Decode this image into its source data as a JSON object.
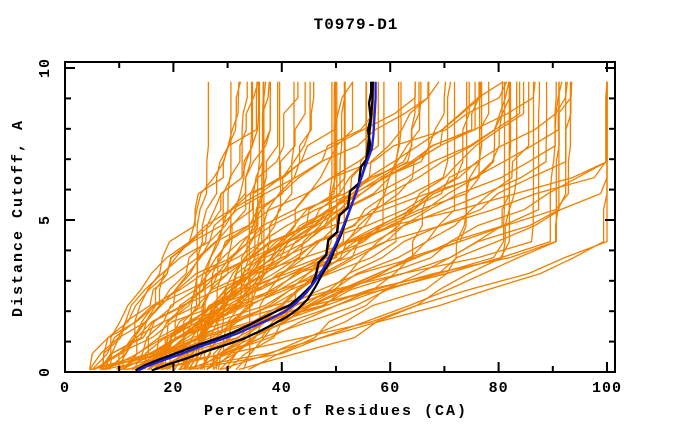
{
  "colors": {
    "background": "#ffffff",
    "axis": "#000000",
    "ensemble_orange": "#F08000",
    "highlight_black": "#000000",
    "highlight_blue": "#1F1FE0"
  },
  "chart_data": {
    "type": "line",
    "title": "T0979-D1",
    "xlabel": "Percent of Residues (CA)",
    "ylabel": "Distance Cutoff, A",
    "xlim": [
      0,
      100
    ],
    "ylim": [
      0,
      10
    ],
    "x_major_ticks": [
      0,
      20,
      40,
      60,
      80,
      100
    ],
    "x_minor_ticks": [
      10,
      30,
      50,
      70,
      90
    ],
    "y_major_ticks": [
      0,
      5,
      10
    ],
    "y_minor_ticks": [
      1,
      2,
      3,
      4,
      6,
      7,
      8,
      9
    ],
    "grid": false,
    "legend_position": "none",
    "series": [
      {
        "name": "highlighted-model-black-1",
        "color": "#000000",
        "width": 2.4,
        "points_percent_cutoff": [
          [
            13,
            0.05
          ],
          [
            14.5,
            0.2
          ],
          [
            16.5,
            0.35
          ],
          [
            19,
            0.52
          ],
          [
            22,
            0.72
          ],
          [
            25,
            0.92
          ],
          [
            28,
            1.1
          ],
          [
            31,
            1.3
          ],
          [
            34,
            1.55
          ],
          [
            36.5,
            1.78
          ],
          [
            39,
            2.0
          ],
          [
            41.5,
            2.2
          ],
          [
            43.5,
            2.5
          ],
          [
            45.5,
            2.85
          ],
          [
            46.3,
            3.2
          ],
          [
            46.8,
            3.6
          ],
          [
            48.2,
            3.85
          ],
          [
            48.6,
            4.35
          ],
          [
            50.2,
            4.6
          ],
          [
            50.6,
            5.15
          ],
          [
            52.2,
            5.4
          ],
          [
            52.6,
            5.95
          ],
          [
            54.2,
            6.2
          ],
          [
            54.6,
            6.75
          ],
          [
            55.9,
            7.05
          ],
          [
            56.3,
            7.5
          ],
          [
            55.9,
            7.95
          ],
          [
            56.4,
            8.35
          ],
          [
            56.1,
            8.85
          ],
          [
            56.5,
            9.2
          ],
          [
            56.5,
            9.55
          ]
        ]
      },
      {
        "name": "highlighted-model-black-2",
        "color": "#000000",
        "width": 2.2,
        "points_percent_cutoff": [
          [
            16,
            0.05
          ],
          [
            19,
            0.25
          ],
          [
            22.5,
            0.45
          ],
          [
            26,
            0.68
          ],
          [
            29.5,
            0.88
          ],
          [
            33,
            1.1
          ],
          [
            36,
            1.35
          ],
          [
            38.5,
            1.58
          ],
          [
            41,
            1.82
          ],
          [
            43,
            2.08
          ],
          [
            44.8,
            2.4
          ],
          [
            46.2,
            2.8
          ],
          [
            47.4,
            3.2
          ],
          [
            48.8,
            3.6
          ],
          [
            49.8,
            4.05
          ],
          [
            50.9,
            4.5
          ],
          [
            51.9,
            5.0
          ],
          [
            52.9,
            5.5
          ],
          [
            53.9,
            6.0
          ],
          [
            54.9,
            6.5
          ],
          [
            55.6,
            7.0
          ],
          [
            56.0,
            7.6
          ],
          [
            56.4,
            8.2
          ],
          [
            56.7,
            8.9
          ],
          [
            56.8,
            9.55
          ]
        ]
      },
      {
        "name": "highlighted-model-blue",
        "color": "#1F1FE0",
        "width": 2.3,
        "points_percent_cutoff": [
          [
            13.5,
            0.05
          ],
          [
            15,
            0.18
          ],
          [
            17.5,
            0.35
          ],
          [
            20,
            0.5
          ],
          [
            23,
            0.7
          ],
          [
            26,
            0.9
          ],
          [
            29,
            1.08
          ],
          [
            32,
            1.28
          ],
          [
            35,
            1.52
          ],
          [
            38,
            1.76
          ],
          [
            40.5,
            1.98
          ],
          [
            42.5,
            2.25
          ],
          [
            44.5,
            2.6
          ],
          [
            46,
            2.95
          ],
          [
            47.5,
            3.35
          ],
          [
            48.7,
            3.75
          ],
          [
            49.8,
            4.15
          ],
          [
            50.8,
            4.55
          ],
          [
            51.8,
            5.0
          ],
          [
            52.8,
            5.45
          ],
          [
            53.8,
            5.95
          ],
          [
            54.8,
            6.45
          ],
          [
            55.8,
            6.95
          ],
          [
            56.6,
            7.35
          ],
          [
            56.9,
            7.8
          ],
          [
            57.1,
            8.4
          ],
          [
            57.3,
            9.0
          ],
          [
            57.3,
            9.55
          ]
        ]
      }
    ],
    "ensemble": {
      "name": "prediction-models-orange",
      "color": "#F08000",
      "width": 1.3,
      "count": 90,
      "seed": 11,
      "cutoff_range": [
        0.08,
        9.55
      ],
      "start_percent_range": [
        4.5,
        34
      ],
      "end_percent_range": [
        24,
        100
      ],
      "shape_exponent_range": [
        0.55,
        1.8
      ],
      "jitter_percent": 3.5,
      "segments_per_curve": 18
    }
  }
}
